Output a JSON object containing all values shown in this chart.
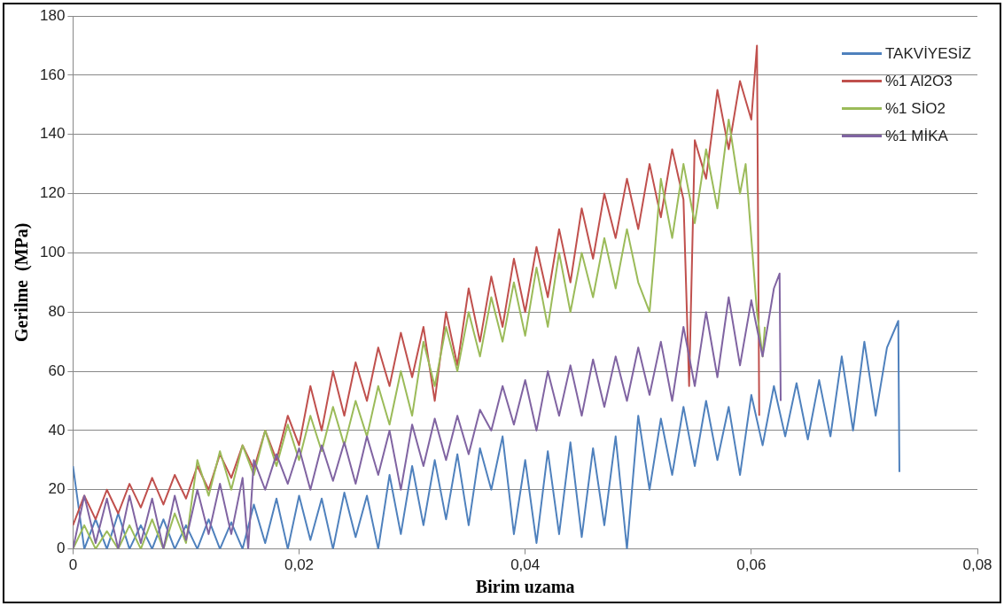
{
  "chart_data": {
    "type": "line",
    "xlabel": "Birim uzama",
    "ylabel": "Gerilme  (MPa)",
    "xlim": [
      0,
      0.08
    ],
    "xticks": [
      0,
      {
        "value": 0.02,
        "label": "0,02"
      },
      {
        "value": 0.04,
        "label": "0,04"
      },
      {
        "value": 0.06,
        "label": "0,06"
      },
      {
        "value": 0.08,
        "label": "0,08"
      }
    ],
    "ylim": [
      0,
      180
    ],
    "yticks": [
      0,
      20,
      40,
      60,
      80,
      100,
      120,
      140,
      160,
      180
    ],
    "grid": "y",
    "legend": "top right",
    "marker": "none",
    "line_style": "solid",
    "series": [
      {
        "name": "TAKVİYESİZ",
        "color": "#4f81bd",
        "x": [
          0,
          0.001,
          0.002,
          0.003,
          0.004,
          0.005,
          0.006,
          0.007,
          0.008,
          0.009,
          0.01,
          0.011,
          0.012,
          0.013,
          0.014,
          0.015,
          0.016,
          0.017,
          0.018,
          0.019,
          0.02,
          0.021,
          0.022,
          0.023,
          0.024,
          0.025,
          0.026,
          0.027,
          0.028,
          0.029,
          0.03,
          0.031,
          0.032,
          0.033,
          0.034,
          0.035,
          0.036,
          0.037,
          0.038,
          0.039,
          0.04,
          0.041,
          0.042,
          0.043,
          0.044,
          0.045,
          0.046,
          0.047,
          0.048,
          0.049,
          0.05,
          0.051,
          0.052,
          0.053,
          0.054,
          0.055,
          0.056,
          0.057,
          0.058,
          0.059,
          0.06,
          0.061,
          0.062,
          0.063,
          0.064,
          0.065,
          0.066,
          0.067,
          0.068,
          0.069,
          0.07,
          0.071,
          0.072,
          0.073,
          0.0731
        ],
        "values": [
          28,
          0,
          10,
          0,
          12,
          0,
          8,
          0,
          10,
          0,
          8,
          0,
          10,
          0,
          9,
          0,
          15,
          2,
          17,
          0,
          18,
          3,
          17,
          0,
          19,
          4,
          18,
          0,
          25,
          5,
          28,
          8,
          30,
          10,
          32,
          8,
          34,
          20,
          38,
          5,
          30,
          2,
          33,
          5,
          36,
          4,
          34,
          8,
          38,
          0,
          45,
          20,
          44,
          25,
          48,
          28,
          50,
          30,
          48,
          25,
          52,
          35,
          55,
          38,
          56,
          37,
          57,
          38,
          65,
          40,
          70,
          45,
          68,
          77,
          26
        ]
      },
      {
        "name": "%1 Al2O3",
        "color": "#c0504d",
        "x": [
          0,
          0.001,
          0.002,
          0.003,
          0.004,
          0.005,
          0.006,
          0.007,
          0.008,
          0.009,
          0.01,
          0.011,
          0.012,
          0.013,
          0.014,
          0.015,
          0.016,
          0.017,
          0.018,
          0.019,
          0.02,
          0.021,
          0.022,
          0.023,
          0.024,
          0.025,
          0.026,
          0.027,
          0.028,
          0.029,
          0.03,
          0.031,
          0.032,
          0.033,
          0.034,
          0.035,
          0.036,
          0.037,
          0.038,
          0.039,
          0.04,
          0.041,
          0.042,
          0.043,
          0.044,
          0.045,
          0.046,
          0.047,
          0.048,
          0.049,
          0.05,
          0.051,
          0.052,
          0.053,
          0.054,
          0.0545,
          0.055,
          0.056,
          0.057,
          0.058,
          0.059,
          0.06,
          0.0605,
          0.0607
        ],
        "values": [
          8,
          18,
          10,
          20,
          12,
          22,
          14,
          24,
          15,
          25,
          17,
          28,
          20,
          32,
          24,
          35,
          27,
          40,
          30,
          45,
          35,
          55,
          40,
          60,
          45,
          63,
          50,
          68,
          55,
          73,
          58,
          75,
          50,
          80,
          62,
          88,
          70,
          92,
          75,
          98,
          80,
          102,
          85,
          108,
          90,
          115,
          98,
          120,
          105,
          125,
          108,
          130,
          112,
          135,
          118,
          55,
          138,
          125,
          155,
          135,
          158,
          145,
          170,
          45
        ]
      },
      {
        "name": "%1 SİO2",
        "color": "#9bbb59",
        "x": [
          0,
          0.001,
          0.002,
          0.003,
          0.004,
          0.005,
          0.006,
          0.007,
          0.008,
          0.009,
          0.01,
          0.011,
          0.012,
          0.013,
          0.014,
          0.015,
          0.016,
          0.017,
          0.018,
          0.019,
          0.02,
          0.021,
          0.022,
          0.023,
          0.024,
          0.025,
          0.026,
          0.027,
          0.028,
          0.029,
          0.03,
          0.031,
          0.032,
          0.033,
          0.034,
          0.035,
          0.036,
          0.037,
          0.038,
          0.039,
          0.04,
          0.041,
          0.042,
          0.043,
          0.044,
          0.045,
          0.046,
          0.047,
          0.048,
          0.049,
          0.05,
          0.051,
          0.052,
          0.053,
          0.054,
          0.055,
          0.056,
          0.057,
          0.058,
          0.059,
          0.0595,
          0.0605,
          0.061,
          0.0612
        ],
        "values": [
          0,
          8,
          0,
          6,
          0,
          8,
          0,
          10,
          0,
          12,
          2,
          30,
          18,
          33,
          20,
          35,
          25,
          40,
          28,
          42,
          30,
          45,
          33,
          48,
          35,
          50,
          38,
          55,
          42,
          60,
          45,
          70,
          55,
          75,
          60,
          80,
          65,
          85,
          70,
          90,
          72,
          95,
          75,
          100,
          80,
          100,
          85,
          105,
          88,
          108,
          90,
          80,
          125,
          105,
          130,
          110,
          135,
          115,
          145,
          120,
          130,
          80,
          65,
          75
        ]
      },
      {
        "name": "%1 MİKA",
        "color": "#8064a2",
        "x": [
          0,
          0.001,
          0.002,
          0.003,
          0.004,
          0.005,
          0.006,
          0.007,
          0.008,
          0.009,
          0.01,
          0.011,
          0.012,
          0.013,
          0.014,
          0.015,
          0.0155,
          0.016,
          0.017,
          0.018,
          0.019,
          0.02,
          0.021,
          0.022,
          0.023,
          0.024,
          0.025,
          0.026,
          0.027,
          0.028,
          0.029,
          0.03,
          0.031,
          0.032,
          0.033,
          0.034,
          0.035,
          0.036,
          0.037,
          0.038,
          0.039,
          0.04,
          0.041,
          0.042,
          0.043,
          0.044,
          0.045,
          0.046,
          0.047,
          0.048,
          0.049,
          0.05,
          0.051,
          0.052,
          0.053,
          0.054,
          0.055,
          0.056,
          0.057,
          0.058,
          0.059,
          0.06,
          0.061,
          0.062,
          0.0625,
          0.0626
        ],
        "values": [
          0,
          18,
          2,
          17,
          0,
          18,
          2,
          17,
          0,
          18,
          3,
          20,
          5,
          22,
          5,
          24,
          0,
          30,
          20,
          32,
          22,
          34,
          20,
          35,
          23,
          36,
          22,
          38,
          25,
          40,
          20,
          42,
          28,
          44,
          30,
          45,
          32,
          47,
          40,
          55,
          42,
          57,
          40,
          60,
          45,
          62,
          45,
          64,
          48,
          65,
          50,
          68,
          52,
          70,
          50,
          75,
          55,
          80,
          58,
          85,
          62,
          84,
          65,
          88,
          93,
          50
        ]
      }
    ]
  }
}
